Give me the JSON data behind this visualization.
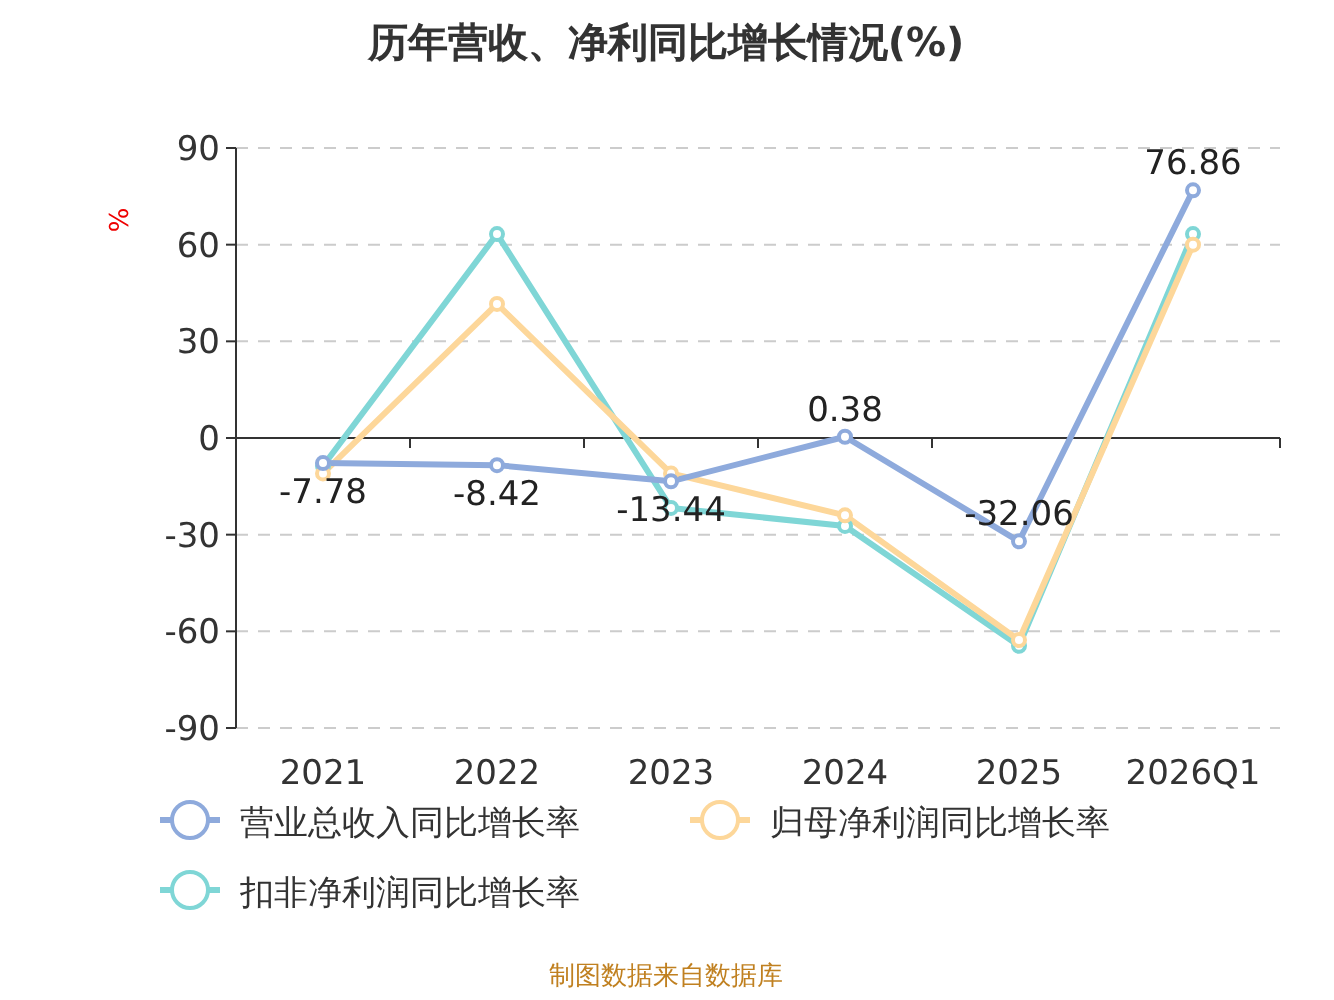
{
  "chart_data": {
    "type": "line",
    "title": "历年营收、净利同比增长情况(%)",
    "ylabel": "%",
    "categories": [
      "2021",
      "2022",
      "2023",
      "2024",
      "2025",
      "2026Q1"
    ],
    "series": [
      {
        "name": "营业总收入同比增长率",
        "color": "#8eaadc",
        "values": [
          -7.78,
          -8.42,
          -13.44,
          0.38,
          -32.06,
          76.86
        ],
        "value_labels": [
          "-7.78",
          "-8.42",
          "-13.44",
          "0.38",
          "-32.06",
          "76.86"
        ]
      },
      {
        "name": "归母净利润同比增长率",
        "color": "#fdd79a",
        "values": [
          -11,
          41.6,
          -11,
          -24,
          -62.7,
          60
        ]
      },
      {
        "name": "扣非净利润同比增长率",
        "color": "#7fd6d6",
        "values": [
          -8.7,
          63.3,
          -21.7,
          -27.3,
          -64.5,
          63.3
        ]
      }
    ],
    "ylim": [
      -90,
      90
    ],
    "yticks": [
      -90,
      -60,
      -30,
      0,
      30,
      60,
      90
    ],
    "grid": "y",
    "marker": "circle",
    "line_style": "solid",
    "legend": "bottom",
    "annotations": [
      "制图数据来自数据库"
    ]
  }
}
